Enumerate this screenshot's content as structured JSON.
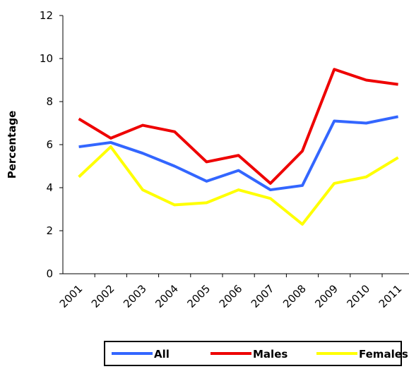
{
  "chart_data": {
    "type": "line",
    "y_label": "Percentage",
    "categories": [
      "2001",
      "2002",
      "2003",
      "2004",
      "2005",
      "2006",
      "2007",
      "2008",
      "2009",
      "2010",
      "2011"
    ],
    "series": [
      {
        "name": "All",
        "color": "#3366ff",
        "values": [
          5.9,
          6.1,
          5.6,
          5.0,
          4.3,
          4.8,
          3.9,
          4.1,
          7.1,
          7.0,
          7.3
        ]
      },
      {
        "name": "Males",
        "color": "#ee0000",
        "values": [
          7.2,
          6.3,
          6.9,
          6.6,
          5.2,
          5.5,
          4.2,
          5.7,
          9.5,
          9.0,
          8.8
        ]
      },
      {
        "name": "Females",
        "color": "#ffff00",
        "values": [
          4.5,
          5.9,
          3.9,
          3.2,
          3.3,
          3.9,
          3.5,
          2.3,
          4.2,
          4.5,
          5.4
        ]
      }
    ],
    "ylim": [
      0,
      12
    ],
    "yticks": [
      0,
      2,
      4,
      6,
      8,
      10,
      12
    ],
    "grid": false,
    "legend": "bottom"
  }
}
